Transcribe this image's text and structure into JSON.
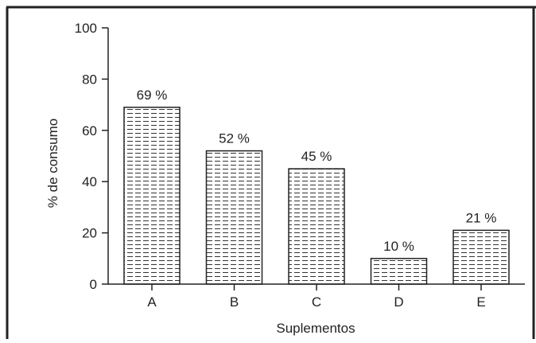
{
  "chart_data": {
    "type": "bar",
    "categories": [
      "A",
      "B",
      "C",
      "D",
      "E"
    ],
    "values": [
      69,
      52,
      45,
      10,
      21
    ],
    "data_labels": [
      "69 %",
      "52 %",
      "45 %",
      "10 %",
      "21 %"
    ],
    "xlabel": "Suplementos",
    "ylabel": "% de consumo",
    "ylim": [
      0,
      100
    ],
    "yticks": [
      0,
      20,
      40,
      60,
      80,
      100
    ],
    "grid": false,
    "bar_fill": "hatched-horizontal-dashed",
    "colors": {
      "bar_stroke": "#222222",
      "hatch": "#333333",
      "frame": "#222222",
      "background": "#ffffff"
    }
  }
}
